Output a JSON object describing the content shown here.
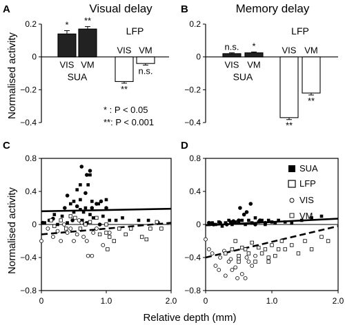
{
  "figure": {
    "ylabel_top": "Normalised activity",
    "ylabel_bottom": "Normalised activity",
    "xlabel_bottom": "Relative depth (mm)",
    "sig_legend": {
      "one_star": "* : P < 0.05",
      "two_star": "**: P < 0.001"
    },
    "scatter_legend": [
      {
        "label": "SUA",
        "marker": "filled-square"
      },
      {
        "label": "LFP",
        "marker": "open-square"
      },
      {
        "label": "VIS",
        "marker": "open-circle"
      },
      {
        "label": "VM",
        "marker": "open-square"
      }
    ],
    "colors": {
      "ink": "#000000",
      "bar_fill_sua": "#222222",
      "bar_fill_lfp": "#ffffff"
    }
  },
  "chart_data": [
    {
      "panel_letter": "A",
      "type": "bar",
      "title": "Visual delay",
      "ylim": [
        -0.4,
        0.2
      ],
      "yticks": [
        0.2,
        0,
        -0.2,
        -0.4
      ],
      "ytick_labels": [
        "0.2",
        "0",
        "−0.2",
        "−0.4"
      ],
      "group_labels": [
        "SUA",
        "LFP"
      ],
      "bars": [
        {
          "group": "SUA",
          "label": "VIS",
          "value": 0.14,
          "error": 0.02,
          "sig": "*"
        },
        {
          "group": "SUA",
          "label": "VM",
          "value": 0.17,
          "error": 0.015,
          "sig": "**"
        },
        {
          "group": "LFP",
          "label": "VIS",
          "value": -0.15,
          "error": 0.01,
          "sig": "**"
        },
        {
          "group": "LFP",
          "label": "VM",
          "value": -0.04,
          "error": 0.01,
          "sig": "n.s."
        }
      ]
    },
    {
      "panel_letter": "B",
      "type": "bar",
      "title": "Memory delay",
      "ylim": [
        -0.4,
        0.2
      ],
      "yticks": [
        0.2,
        0,
        -0.2,
        -0.4
      ],
      "ytick_labels": [
        "0.2",
        "0",
        "−0.2",
        "−0.4"
      ],
      "group_labels": [
        "SUA",
        "LFP"
      ],
      "bars": [
        {
          "group": "SUA",
          "label": "VIS",
          "value": 0.02,
          "error": 0.005,
          "sig": "n.s."
        },
        {
          "group": "SUA",
          "label": "VM",
          "value": 0.025,
          "error": 0.005,
          "sig": "*"
        },
        {
          "group": "LFP",
          "label": "VIS",
          "value": -0.37,
          "error": 0.012,
          "sig": "**"
        },
        {
          "group": "LFP",
          "label": "VM",
          "value": -0.22,
          "error": 0.012,
          "sig": "**"
        }
      ]
    },
    {
      "panel_letter": "C",
      "type": "scatter",
      "xlim": [
        0,
        2.0
      ],
      "ylim": [
        -0.8,
        0.8
      ],
      "xticks": [
        0,
        1.0,
        2.0
      ],
      "xtick_labels": [
        "0",
        "1.0",
        "2.0"
      ],
      "yticks": [
        0.8,
        0.4,
        0,
        -0.4,
        -0.8
      ],
      "ytick_labels": [
        "0.8",
        "0.4",
        "0",
        "−0.4",
        "−0.8"
      ],
      "series": [
        {
          "name": "SUA",
          "group": "SUA",
          "marker": "filled-square",
          "points": [
            [
              0.05,
              0.02
            ],
            [
              0.12,
              0.05
            ],
            [
              0.2,
              0.12
            ],
            [
              0.25,
              0.0
            ],
            [
              0.32,
              0.1
            ],
            [
              0.4,
              0.02
            ],
            [
              0.45,
              0.25
            ],
            [
              0.5,
              0.15
            ],
            [
              0.55,
              0.42
            ],
            [
              0.6,
              0.3
            ],
            [
              0.6,
              0.18
            ],
            [
              0.63,
              0.05
            ],
            [
              0.65,
              0.15
            ],
            [
              0.68,
              0.2
            ],
            [
              0.7,
              0.02
            ],
            [
              0.75,
              0.12
            ],
            [
              0.8,
              0.08
            ],
            [
              0.88,
              0.25
            ],
            [
              0.95,
              0.1
            ],
            [
              1.0,
              0.3
            ],
            [
              1.05,
              0.05
            ],
            [
              1.15,
              0.05
            ],
            [
              1.25,
              0.08
            ],
            [
              1.5,
              0.05
            ],
            [
              1.65,
              0.05
            ],
            [
              1.8,
              0.02
            ],
            [
              0.72,
              0.48
            ],
            [
              0.78,
              0.28
            ],
            [
              0.6,
              0.48
            ],
            [
              0.75,
              0.6
            ],
            [
              0.5,
              0.28
            ]
          ]
        },
        {
          "name": "SUA",
          "group": "SUA",
          "marker": "filled-circle",
          "points": [
            [
              0.02,
              0.02
            ],
            [
              0.18,
              0.07
            ],
            [
              0.36,
              0.2
            ],
            [
              0.62,
              0.7
            ],
            [
              0.7,
              0.6
            ],
            [
              0.75,
              0.65
            ],
            [
              0.55,
              0.22
            ],
            [
              0.68,
              0.38
            ],
            [
              0.85,
              0.25
            ],
            [
              0.92,
              0.28
            ],
            [
              1.0,
              0.2
            ],
            [
              0.9,
              0.0
            ],
            [
              0.4,
              0.35
            ],
            [
              0.78,
              0.2
            ],
            [
              0.48,
              0.05
            ]
          ]
        },
        {
          "name": "LFP",
          "group": "LFP",
          "marker": "open-circle",
          "points": [
            [
              0.0,
              -0.2
            ],
            [
              0.1,
              -0.05
            ],
            [
              0.18,
              -0.15
            ],
            [
              0.25,
              -0.08
            ],
            [
              0.3,
              -0.2
            ],
            [
              0.4,
              -0.1
            ],
            [
              0.45,
              -0.05
            ],
            [
              0.5,
              -0.2
            ],
            [
              0.55,
              -0.12
            ],
            [
              0.62,
              0.02
            ],
            [
              0.65,
              -0.15
            ],
            [
              0.72,
              -0.38
            ],
            [
              0.78,
              -0.38
            ],
            [
              0.8,
              -0.1
            ],
            [
              0.85,
              -0.05
            ],
            [
              0.95,
              -0.25
            ],
            [
              1.05,
              -0.1
            ],
            [
              0.7,
              -0.2
            ],
            [
              0.35,
              0.0
            ],
            [
              0.58,
              0.05
            ]
          ]
        },
        {
          "name": "LFP",
          "group": "LFP",
          "marker": "open-square",
          "points": [
            [
              0.15,
              0.05
            ],
            [
              0.2,
              -0.02
            ],
            [
              0.3,
              0.05
            ],
            [
              0.38,
              -0.05
            ],
            [
              0.45,
              0.1
            ],
            [
              0.52,
              0.08
            ],
            [
              0.6,
              -0.05
            ],
            [
              0.68,
              0.0
            ],
            [
              0.75,
              0.03
            ],
            [
              0.85,
              0.08
            ],
            [
              0.9,
              -0.12
            ],
            [
              1.0,
              0.0
            ],
            [
              1.05,
              -0.15
            ],
            [
              1.12,
              -0.2
            ],
            [
              1.2,
              -0.05
            ],
            [
              1.3,
              -0.12
            ],
            [
              1.38,
              -0.05
            ],
            [
              1.55,
              -0.15
            ],
            [
              1.62,
              -0.18
            ],
            [
              1.68,
              -0.05
            ],
            [
              1.78,
              0.03
            ],
            [
              1.85,
              -0.05
            ],
            [
              1.02,
              -0.3
            ],
            [
              1.0,
              -0.1
            ]
          ]
        }
      ],
      "fits": [
        {
          "group": "SUA",
          "style": "solid",
          "x": [
            0,
            2.0
          ],
          "y": [
            0.16,
            0.19
          ]
        },
        {
          "group": "mean",
          "style": "thin-solid",
          "x": [
            0,
            2.0
          ],
          "y": [
            0.0,
            0.0
          ]
        },
        {
          "group": "LFP",
          "style": "dashed",
          "x": [
            0,
            2.0
          ],
          "y": [
            -0.12,
            0.02
          ]
        }
      ]
    },
    {
      "panel_letter": "D",
      "type": "scatter",
      "xlim": [
        0,
        2.0
      ],
      "ylim": [
        -0.8,
        0.8
      ],
      "xticks": [
        0,
        1.0,
        2.0
      ],
      "xtick_labels": [
        "0",
        "1.0",
        "2.0"
      ],
      "yticks": [
        0.8,
        0.4,
        0,
        -0.4,
        -0.8
      ],
      "ytick_labels": [
        "0.8",
        "0.4",
        "0",
        "−0.4",
        "−0.8"
      ],
      "series": [
        {
          "name": "SUA",
          "group": "SUA",
          "marker": "filled-square",
          "points": [
            [
              0.05,
              0.0
            ],
            [
              0.1,
              0.02
            ],
            [
              0.15,
              0.0
            ],
            [
              0.2,
              0.03
            ],
            [
              0.25,
              -0.02
            ],
            [
              0.3,
              0.02
            ],
            [
              0.35,
              0.05
            ],
            [
              0.4,
              0.0
            ],
            [
              0.45,
              0.03
            ],
            [
              0.5,
              0.02
            ],
            [
              0.55,
              0.05
            ],
            [
              0.6,
              0.0
            ],
            [
              0.65,
              0.05
            ],
            [
              0.7,
              0.02
            ],
            [
              0.75,
              0.08
            ],
            [
              0.8,
              0.03
            ],
            [
              0.85,
              0.05
            ],
            [
              0.9,
              0.0
            ],
            [
              0.95,
              0.05
            ],
            [
              1.0,
              0.03
            ],
            [
              1.05,
              0.02
            ],
            [
              1.1,
              0.05
            ],
            [
              1.2,
              0.03
            ],
            [
              1.3,
              0.02
            ],
            [
              1.45,
              0.05
            ],
            [
              1.6,
              0.08
            ],
            [
              1.75,
              0.1
            ]
          ]
        },
        {
          "name": "SUA",
          "group": "SUA",
          "marker": "filled-circle",
          "points": [
            [
              0.05,
              0.02
            ],
            [
              0.12,
              0.0
            ],
            [
              0.22,
              0.02
            ],
            [
              0.32,
              0.0
            ],
            [
              0.42,
              0.04
            ],
            [
              0.52,
              0.2
            ],
            [
              0.58,
              0.12
            ],
            [
              0.62,
              0.15
            ],
            [
              0.68,
              0.25
            ],
            [
              0.75,
              0.0
            ],
            [
              0.82,
              0.05
            ],
            [
              0.9,
              0.02
            ],
            [
              0.5,
              0.05
            ],
            [
              0.38,
              0.03
            ]
          ]
        },
        {
          "name": "LFP",
          "group": "LFP",
          "marker": "open-circle",
          "points": [
            [
              0.0,
              -0.18
            ],
            [
              0.05,
              -0.3
            ],
            [
              0.1,
              -0.35
            ],
            [
              0.15,
              -0.5
            ],
            [
              0.22,
              -0.4
            ],
            [
              0.3,
              -0.62
            ],
            [
              0.35,
              -0.45
            ],
            [
              0.4,
              -0.55
            ],
            [
              0.45,
              -0.52
            ],
            [
              0.5,
              -0.42
            ],
            [
              0.55,
              -0.6
            ],
            [
              0.6,
              -0.65
            ],
            [
              0.65,
              -0.45
            ],
            [
              0.7,
              -0.5
            ],
            [
              0.75,
              -0.38
            ],
            [
              0.2,
              -0.55
            ],
            [
              0.28,
              -0.32
            ],
            [
              0.48,
              -0.65
            ],
            [
              0.38,
              -0.42
            ],
            [
              0.62,
              -0.4
            ]
          ]
        },
        {
          "name": "LFP",
          "group": "LFP",
          "marker": "open-square",
          "points": [
            [
              0.3,
              -0.35
            ],
            [
              0.4,
              -0.3
            ],
            [
              0.45,
              -0.2
            ],
            [
              0.5,
              -0.38
            ],
            [
              0.55,
              -0.28
            ],
            [
              0.6,
              -0.3
            ],
            [
              0.65,
              -0.35
            ],
            [
              0.7,
              -0.22
            ],
            [
              0.75,
              -0.45
            ],
            [
              0.8,
              -0.28
            ],
            [
              0.85,
              -0.35
            ],
            [
              0.9,
              -0.3
            ],
            [
              0.95,
              -0.4
            ],
            [
              1.0,
              -0.25
            ],
            [
              1.05,
              -0.38
            ],
            [
              1.1,
              -0.3
            ],
            [
              1.15,
              -0.2
            ],
            [
              1.2,
              -0.3
            ],
            [
              1.3,
              -0.25
            ],
            [
              1.4,
              -0.35
            ],
            [
              1.5,
              -0.2
            ],
            [
              1.6,
              -0.3
            ],
            [
              1.75,
              -0.15
            ],
            [
              1.85,
              -0.2
            ],
            [
              0.95,
              -0.45
            ],
            [
              0.5,
              -0.45
            ]
          ]
        }
      ],
      "fits": [
        {
          "group": "SUA",
          "style": "solid",
          "x": [
            0,
            2.0
          ],
          "y": [
            -0.01,
            0.07
          ]
        },
        {
          "group": "mean",
          "style": "thin-solid",
          "x": [
            0,
            2.0
          ],
          "y": [
            0.0,
            0.0
          ]
        },
        {
          "group": "LFP",
          "style": "dashed",
          "x": [
            0,
            2.0
          ],
          "y": [
            -0.4,
            -0.02
          ]
        }
      ]
    }
  ]
}
